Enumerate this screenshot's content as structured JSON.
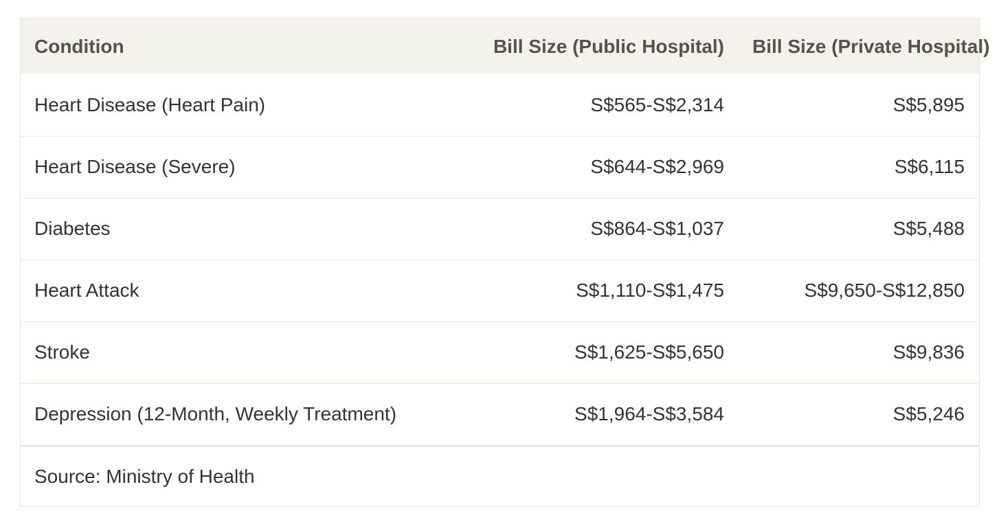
{
  "table": {
    "headers": {
      "condition": "Condition",
      "public": "Bill Size (Public Hospital)",
      "private": "Bill Size (Private Hospital)"
    },
    "rows": [
      {
        "condition": "Heart Disease (Heart Pain)",
        "public": "S$565-S$2,314",
        "private": "S$5,895"
      },
      {
        "condition": "Heart Disease (Severe)",
        "public": "S$644-S$2,969",
        "private": "S$6,115"
      },
      {
        "condition": "Diabetes",
        "public": "S$864-S$1,037",
        "private": "S$5,488"
      },
      {
        "condition": "Heart Attack",
        "public": "S$1,110-S$1,475",
        "private": "S$9,650-S$12,850"
      },
      {
        "condition": "Stroke",
        "public": "S$1,625-S$5,650",
        "private": "S$9,836"
      },
      {
        "condition": "Depression (12-Month, Weekly Treatment)",
        "public": "S$1,964-S$3,584",
        "private": "S$5,246"
      }
    ],
    "source": "Source: Ministry of Health"
  }
}
